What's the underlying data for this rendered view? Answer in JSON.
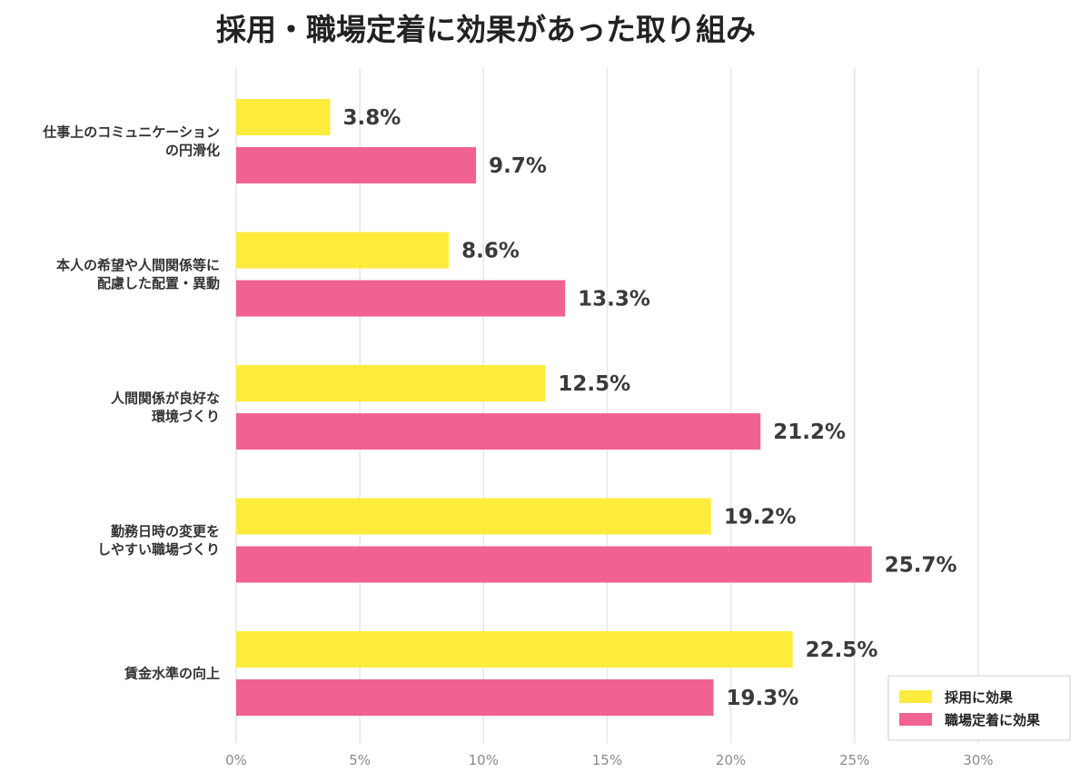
{
  "chart_data": {
    "type": "bar",
    "orientation": "horizontal",
    "title": "採用・職場定着に効果があった取り組み",
    "categories": [
      [
        "仕事上のコミュニケーション",
        "の円滑化"
      ],
      [
        "本人の希望や人間関係等に",
        "配慮した配置・異動"
      ],
      [
        "人間関係が良好な",
        "環境づくり"
      ],
      [
        "勤務日時の変更を",
        "しやすい職場づくり"
      ],
      [
        "賃金水準の向上"
      ]
    ],
    "series": [
      {
        "name": "採用に効果",
        "color": "#FFEB3B",
        "values": [
          3.8,
          8.6,
          12.5,
          19.2,
          22.5
        ],
        "labels": [
          "3.8%",
          "8.6%",
          "12.5%",
          "19.2%",
          "22.5%"
        ]
      },
      {
        "name": "職場定着に効果",
        "color": "#F06292",
        "values": [
          9.7,
          13.3,
          21.2,
          25.7,
          19.3
        ],
        "labels": [
          "9.7%",
          "13.3%",
          "21.2%",
          "25.7%",
          "19.3%"
        ]
      }
    ],
    "xlim": [
      0,
      30
    ],
    "xticks": [
      "0%",
      "5%",
      "10%",
      "15%",
      "20%",
      "25%",
      "30%"
    ],
    "grid": true,
    "legend_position": "bottom-right"
  }
}
